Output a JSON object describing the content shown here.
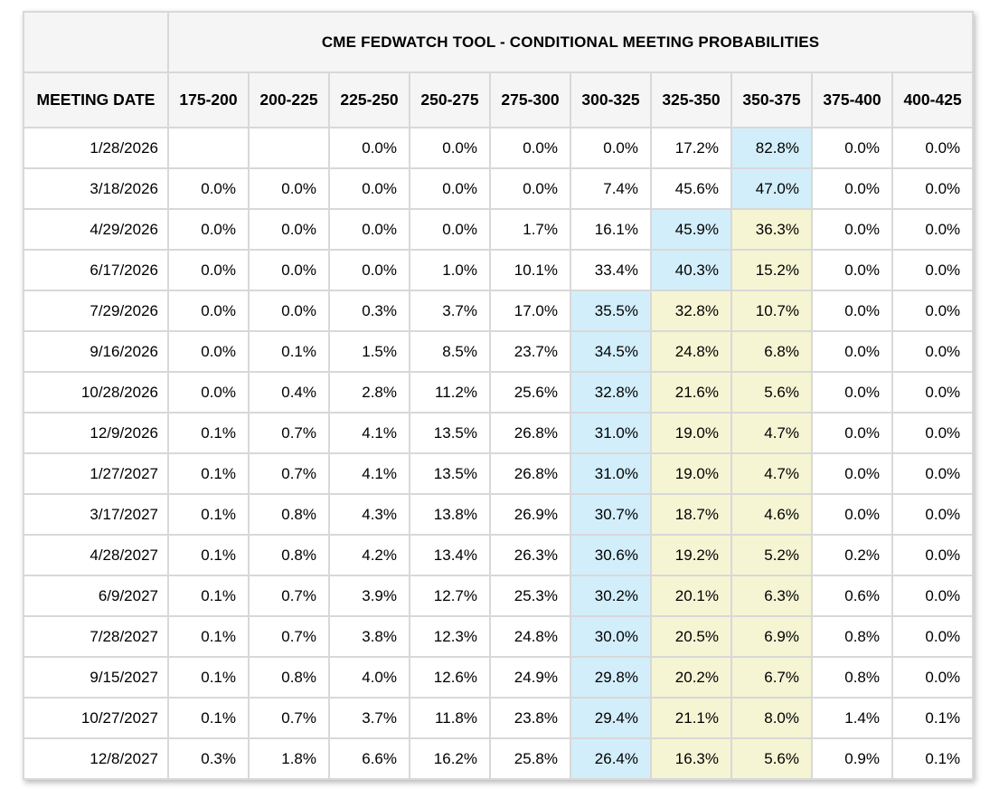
{
  "chart_data": {
    "type": "table",
    "title": "CME FEDWATCH TOOL - CONDITIONAL MEETING PROBABILITIES",
    "row_header": "MEETING DATE",
    "rate_ranges": [
      "175-200",
      "200-225",
      "225-250",
      "250-275",
      "275-300",
      "300-325",
      "325-350",
      "350-375",
      "375-400",
      "400-425"
    ],
    "rows": [
      {
        "date": "1/28/2026",
        "values": [
          "",
          "",
          "0.0%",
          "0.0%",
          "0.0%",
          "0.0%",
          "17.2%",
          "82.8%",
          "0.0%",
          "0.0%"
        ],
        "highlights": [
          "",
          "",
          "",
          "",
          "",
          "",
          "",
          "blue",
          "",
          ""
        ]
      },
      {
        "date": "3/18/2026",
        "values": [
          "0.0%",
          "0.0%",
          "0.0%",
          "0.0%",
          "0.0%",
          "7.4%",
          "45.6%",
          "47.0%",
          "0.0%",
          "0.0%"
        ],
        "highlights": [
          "",
          "",
          "",
          "",
          "",
          "",
          "",
          "blue",
          "",
          ""
        ]
      },
      {
        "date": "4/29/2026",
        "values": [
          "0.0%",
          "0.0%",
          "0.0%",
          "0.0%",
          "1.7%",
          "16.1%",
          "45.9%",
          "36.3%",
          "0.0%",
          "0.0%"
        ],
        "highlights": [
          "",
          "",
          "",
          "",
          "",
          "",
          "blue",
          "yellow",
          "",
          ""
        ]
      },
      {
        "date": "6/17/2026",
        "values": [
          "0.0%",
          "0.0%",
          "0.0%",
          "1.0%",
          "10.1%",
          "33.4%",
          "40.3%",
          "15.2%",
          "0.0%",
          "0.0%"
        ],
        "highlights": [
          "",
          "",
          "",
          "",
          "",
          "",
          "blue",
          "yellow",
          "",
          ""
        ]
      },
      {
        "date": "7/29/2026",
        "values": [
          "0.0%",
          "0.0%",
          "0.3%",
          "3.7%",
          "17.0%",
          "35.5%",
          "32.8%",
          "10.7%",
          "0.0%",
          "0.0%"
        ],
        "highlights": [
          "",
          "",
          "",
          "",
          "",
          "blue",
          "yellow",
          "yellow",
          "",
          ""
        ]
      },
      {
        "date": "9/16/2026",
        "values": [
          "0.0%",
          "0.1%",
          "1.5%",
          "8.5%",
          "23.7%",
          "34.5%",
          "24.8%",
          "6.8%",
          "0.0%",
          "0.0%"
        ],
        "highlights": [
          "",
          "",
          "",
          "",
          "",
          "blue",
          "yellow",
          "yellow",
          "",
          ""
        ]
      },
      {
        "date": "10/28/2026",
        "values": [
          "0.0%",
          "0.4%",
          "2.8%",
          "11.2%",
          "25.6%",
          "32.8%",
          "21.6%",
          "5.6%",
          "0.0%",
          "0.0%"
        ],
        "highlights": [
          "",
          "",
          "",
          "",
          "",
          "blue",
          "yellow",
          "yellow",
          "",
          ""
        ]
      },
      {
        "date": "12/9/2026",
        "values": [
          "0.1%",
          "0.7%",
          "4.1%",
          "13.5%",
          "26.8%",
          "31.0%",
          "19.0%",
          "4.7%",
          "0.0%",
          "0.0%"
        ],
        "highlights": [
          "",
          "",
          "",
          "",
          "",
          "blue",
          "yellow",
          "yellow",
          "",
          ""
        ]
      },
      {
        "date": "1/27/2027",
        "values": [
          "0.1%",
          "0.7%",
          "4.1%",
          "13.5%",
          "26.8%",
          "31.0%",
          "19.0%",
          "4.7%",
          "0.0%",
          "0.0%"
        ],
        "highlights": [
          "",
          "",
          "",
          "",
          "",
          "blue",
          "yellow",
          "yellow",
          "",
          ""
        ]
      },
      {
        "date": "3/17/2027",
        "values": [
          "0.1%",
          "0.8%",
          "4.3%",
          "13.8%",
          "26.9%",
          "30.7%",
          "18.7%",
          "4.6%",
          "0.0%",
          "0.0%"
        ],
        "highlights": [
          "",
          "",
          "",
          "",
          "",
          "blue",
          "yellow",
          "yellow",
          "",
          ""
        ]
      },
      {
        "date": "4/28/2027",
        "values": [
          "0.1%",
          "0.8%",
          "4.2%",
          "13.4%",
          "26.3%",
          "30.6%",
          "19.2%",
          "5.2%",
          "0.2%",
          "0.0%"
        ],
        "highlights": [
          "",
          "",
          "",
          "",
          "",
          "blue",
          "yellow",
          "yellow",
          "",
          ""
        ]
      },
      {
        "date": "6/9/2027",
        "values": [
          "0.1%",
          "0.7%",
          "3.9%",
          "12.7%",
          "25.3%",
          "30.2%",
          "20.1%",
          "6.3%",
          "0.6%",
          "0.0%"
        ],
        "highlights": [
          "",
          "",
          "",
          "",
          "",
          "blue",
          "yellow",
          "yellow",
          "",
          ""
        ]
      },
      {
        "date": "7/28/2027",
        "values": [
          "0.1%",
          "0.7%",
          "3.8%",
          "12.3%",
          "24.8%",
          "30.0%",
          "20.5%",
          "6.9%",
          "0.8%",
          "0.0%"
        ],
        "highlights": [
          "",
          "",
          "",
          "",
          "",
          "blue",
          "yellow",
          "yellow",
          "",
          ""
        ]
      },
      {
        "date": "9/15/2027",
        "values": [
          "0.1%",
          "0.8%",
          "4.0%",
          "12.6%",
          "24.9%",
          "29.8%",
          "20.2%",
          "6.7%",
          "0.8%",
          "0.0%"
        ],
        "highlights": [
          "",
          "",
          "",
          "",
          "",
          "blue",
          "yellow",
          "yellow",
          "",
          ""
        ]
      },
      {
        "date": "10/27/2027",
        "values": [
          "0.1%",
          "0.7%",
          "3.7%",
          "11.8%",
          "23.8%",
          "29.4%",
          "21.1%",
          "8.0%",
          "1.4%",
          "0.1%"
        ],
        "highlights": [
          "",
          "",
          "",
          "",
          "",
          "blue",
          "yellow",
          "yellow",
          "",
          ""
        ]
      },
      {
        "date": "12/8/2027",
        "values": [
          "0.3%",
          "1.8%",
          "6.6%",
          "16.2%",
          "25.8%",
          "26.4%",
          "16.3%",
          "5.6%",
          "0.9%",
          "0.1%"
        ],
        "highlights": [
          "",
          "",
          "",
          "",
          "",
          "blue",
          "yellow",
          "yellow",
          "",
          ""
        ]
      }
    ]
  },
  "colors": {
    "highlight_blue": "#d2eefa",
    "highlight_yellow": "#f5f5d4",
    "header_bg": "#f5f5f5",
    "border": "#d8d8d8"
  }
}
